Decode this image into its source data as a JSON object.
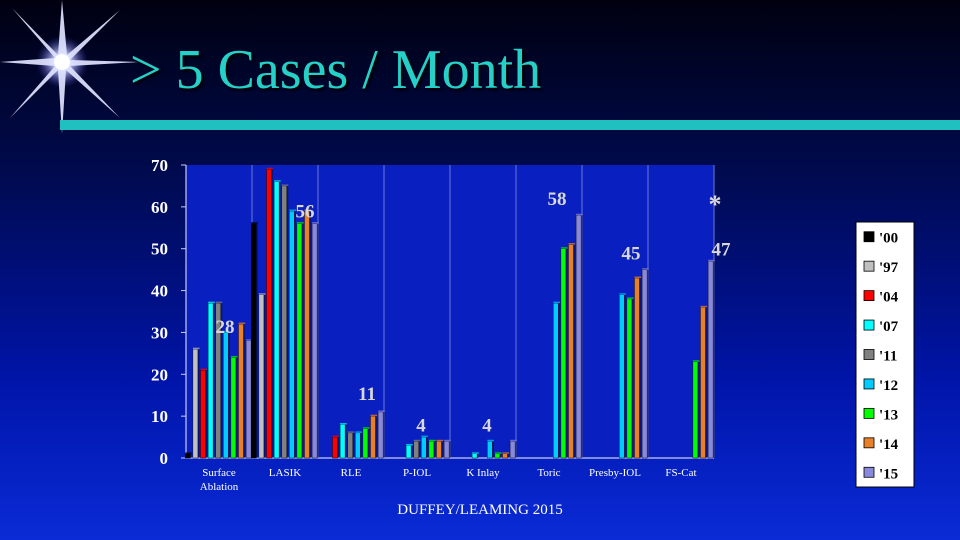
{
  "slide": {
    "title": "> 5 Cases / Month",
    "footer": "DUFFEY/LEAMING 2015"
  },
  "colors": {
    "title": "#25d0c8",
    "rule": "#20c0c0",
    "plot_bg": "#0a1fbf",
    "axis_text": "#ffffff",
    "callout_text": "#d8d8d8"
  },
  "chart_data": {
    "type": "bar",
    "title": "",
    "xlabel": "",
    "ylabel": "",
    "ylim": [
      0,
      70
    ],
    "yticks": [
      0,
      10,
      20,
      30,
      40,
      50,
      60,
      70
    ],
    "grid": "vertical separators between categories",
    "legend_position": "right",
    "categories": [
      "Surface Ablation",
      "LASIK",
      "RLE",
      "P-IOL",
      "K Inlay",
      "Toric",
      "Presby-IOL",
      "FS-Cat"
    ],
    "series": [
      {
        "name": "'00",
        "color": "#000000",
        "values": [
          1,
          56,
          0,
          0,
          0,
          0,
          0,
          0
        ]
      },
      {
        "name": "'97",
        "color": "#c0c0c0",
        "values": [
          26,
          39,
          0,
          0,
          0,
          0,
          0,
          0
        ]
      },
      {
        "name": "'04",
        "color": "#ff0000",
        "values": [
          21,
          69,
          5,
          0,
          0,
          0,
          0,
          0
        ]
      },
      {
        "name": "'07",
        "color": "#00ffff",
        "values": [
          37,
          66,
          8,
          3,
          1,
          0,
          0,
          0
        ]
      },
      {
        "name": "'11",
        "color": "#808080",
        "values": [
          37,
          65,
          6,
          4,
          0,
          0,
          0,
          0
        ]
      },
      {
        "name": "'12",
        "color": "#00ccff",
        "values": [
          30,
          59,
          6,
          5,
          4,
          37,
          39,
          0
        ]
      },
      {
        "name": "'13",
        "color": "#00ff00",
        "values": [
          24,
          56,
          7,
          4,
          1,
          50,
          38,
          23
        ]
      },
      {
        "name": "'14",
        "color": "#e8802a",
        "values": [
          32,
          59,
          10,
          4,
          1,
          51,
          43,
          36
        ]
      },
      {
        "name": "'15",
        "color": "#8888dd",
        "values": [
          28,
          56,
          11,
          4,
          4,
          58,
          45,
          47
        ]
      }
    ],
    "annotations": [
      {
        "text": "28",
        "category": "Surface Ablation",
        "value": 28
      },
      {
        "text": "56",
        "category": "LASIK",
        "value": 56
      },
      {
        "text": "11",
        "category": "RLE",
        "value": 11
      },
      {
        "text": "4",
        "category": "P-IOL",
        "value": 4
      },
      {
        "text": "4",
        "category": "K Inlay",
        "value": 4
      },
      {
        "text": "58",
        "category": "Toric",
        "value": 58
      },
      {
        "text": "45",
        "category": "Presby-IOL",
        "value": 45
      },
      {
        "text": "*",
        "category": "FS-Cat",
        "value": 60
      },
      {
        "text": "47",
        "category": "FS-Cat",
        "value": 47
      }
    ]
  }
}
